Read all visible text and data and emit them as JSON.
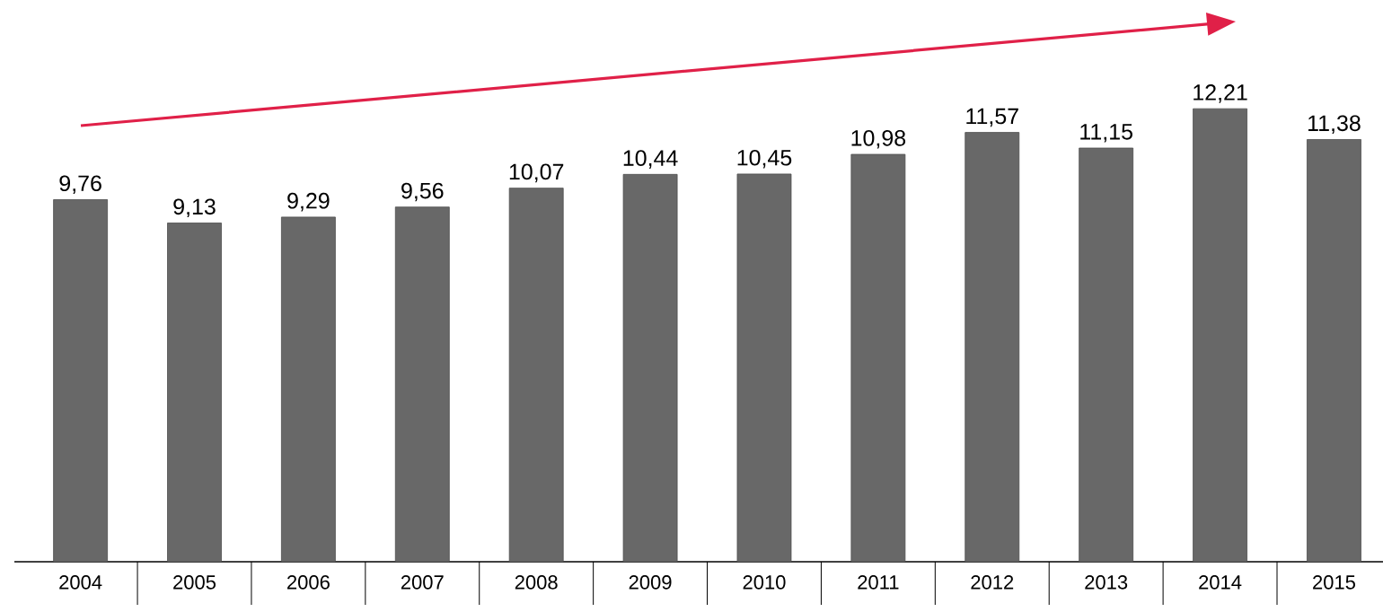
{
  "chart_data": {
    "type": "bar",
    "categories": [
      "2004",
      "2005",
      "2006",
      "2007",
      "2008",
      "2009",
      "2010",
      "2011",
      "2012",
      "2013",
      "2014",
      "2015"
    ],
    "values": [
      9.76,
      9.13,
      9.29,
      9.56,
      10.07,
      10.44,
      10.45,
      10.98,
      11.57,
      11.15,
      12.21,
      11.38
    ],
    "value_labels": [
      "9,76",
      "9,13",
      "9,29",
      "9,56",
      "10,07",
      "10,44",
      "10,45",
      "10,98",
      "11,57",
      "11,15",
      "12,21",
      "11,38"
    ],
    "color": "#686868"
  }
}
